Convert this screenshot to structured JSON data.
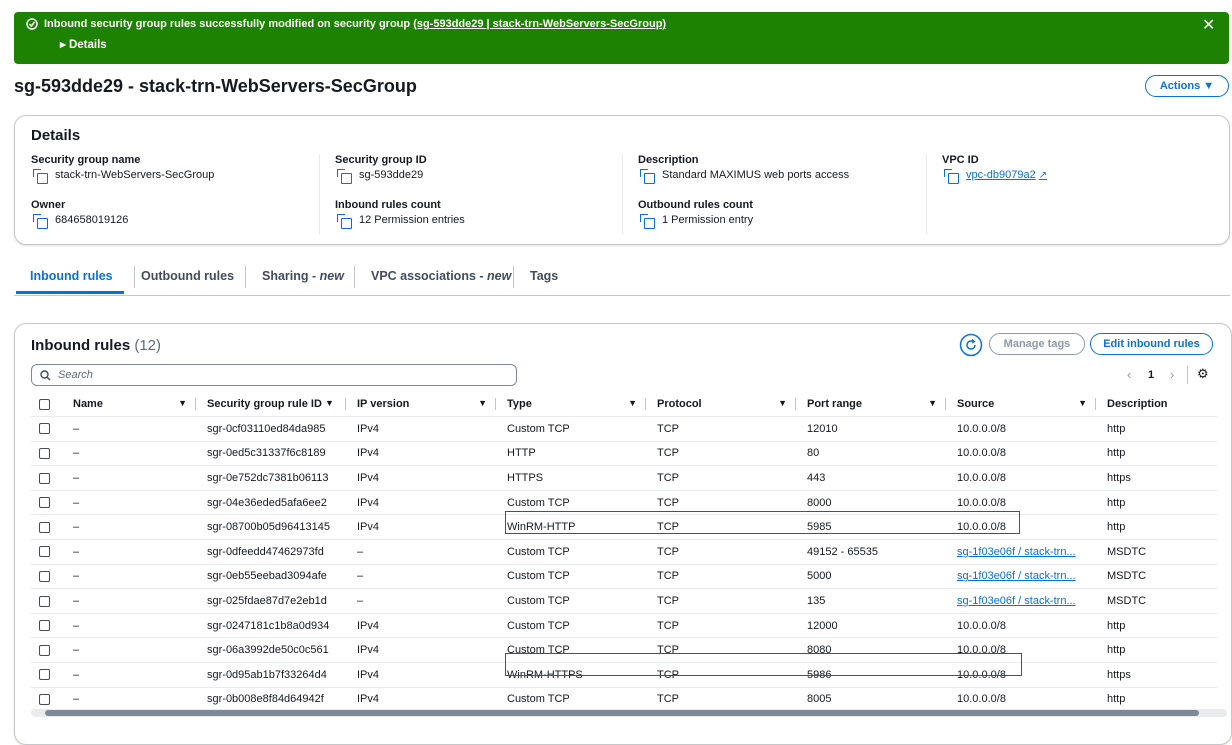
{
  "banner": {
    "message": "Inbound security group rules successfully modified on security group",
    "link": "(sg-593dde29 | stack-trn-WebServers-SecGroup)",
    "details": "Details"
  },
  "header": {
    "title": "sg-593dde29 - stack-trn-WebServers-SecGroup",
    "actions": "Actions"
  },
  "details": {
    "title": "Details",
    "fields": [
      {
        "label": "Security group name",
        "value": "stack-trn-WebServers-SecGroup"
      },
      {
        "label": "Security group ID",
        "value": "sg-593dde29"
      },
      {
        "label": "Description",
        "value": "Standard MAXIMUS web ports access"
      },
      {
        "label": "VPC ID",
        "value": "vpc-db9079a2"
      },
      {
        "label": "Owner",
        "value": "684658019126"
      },
      {
        "label": "Inbound rules count",
        "value": "12 Permission entries"
      },
      {
        "label": "Outbound rules count",
        "value": "1 Permission entry"
      }
    ]
  },
  "tabs": [
    {
      "label": "Inbound rules"
    },
    {
      "label": "Outbound rules"
    },
    {
      "label": "Sharing -",
      "badge": "new"
    },
    {
      "label": "VPC associations -",
      "badge": "new"
    },
    {
      "label": "Tags"
    }
  ],
  "rules": {
    "title": "Inbound rules",
    "count": "(12)",
    "manage_tags": "Manage tags",
    "edit": "Edit inbound rules",
    "search": "Search",
    "page": "1",
    "columns": [
      "Name",
      "Security group rule ID",
      "IP version",
      "Type",
      "Protocol",
      "Port range",
      "Source",
      "Description"
    ],
    "rows": [
      [
        "–",
        "sgr-0cf03110ed84da985",
        "IPv4",
        "Custom TCP",
        "TCP",
        "12010",
        "10.0.0.0/8",
        "http"
      ],
      [
        "–",
        "sgr-0ed5c31337f6c8189",
        "IPv4",
        "HTTP",
        "TCP",
        "80",
        "10.0.0.0/8",
        "http"
      ],
      [
        "–",
        "sgr-0e752dc7381b06113",
        "IPv4",
        "HTTPS",
        "TCP",
        "443",
        "10.0.0.0/8",
        "https"
      ],
      [
        "–",
        "sgr-04e36eded5afa6ee2",
        "IPv4",
        "Custom TCP",
        "TCP",
        "8000",
        "10.0.0.0/8",
        "http"
      ],
      [
        "–",
        "sgr-08700b05d96413145",
        "IPv4",
        "WinRM-HTTP",
        "TCP",
        "5985",
        "10.0.0.0/8",
        "http"
      ],
      [
        "–",
        "sgr-0dfeedd47462973fd",
        "–",
        "Custom TCP",
        "TCP",
        "49152 - 65535",
        "sg-1f03e06f / stack-trn...",
        "MSDTC"
      ],
      [
        "–",
        "sgr-0eb55eebad3094afe",
        "–",
        "Custom TCP",
        "TCP",
        "5000",
        "sg-1f03e06f / stack-trn...",
        "MSDTC"
      ],
      [
        "–",
        "sgr-025fdae87d7e2eb1d",
        "–",
        "Custom TCP",
        "TCP",
        "135",
        "sg-1f03e06f / stack-trn...",
        "MSDTC"
      ],
      [
        "–",
        "sgr-0247181c1b8a0d934",
        "IPv4",
        "Custom TCP",
        "TCP",
        "12000",
        "10.0.0.0/8",
        "http"
      ],
      [
        "–",
        "sgr-06a3992de50c0c561",
        "IPv4",
        "Custom TCP",
        "TCP",
        "8080",
        "10.0.0.0/8",
        "http"
      ],
      [
        "–",
        "sgr-0d95ab1b7f33264d4",
        "IPv4",
        "WinRM-HTTPS",
        "TCP",
        "5986",
        "10.0.0.0/8",
        "https"
      ],
      [
        "–",
        "sgr-0b008e8f84d64942f",
        "IPv4",
        "Custom TCP",
        "TCP",
        "8005",
        "10.0.0.0/8",
        "http"
      ]
    ]
  }
}
